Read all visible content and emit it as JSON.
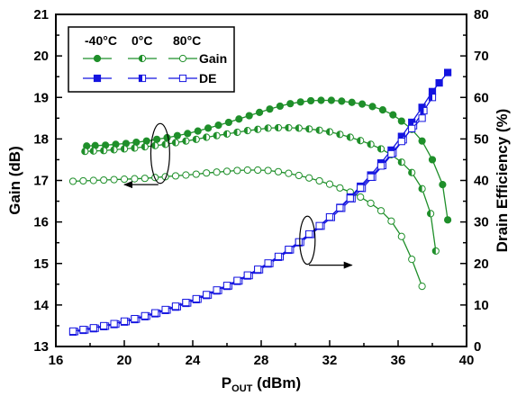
{
  "chart_data": {
    "type": "line",
    "xlabel_main": "P",
    "xlabel_sub": "OUT",
    "xlabel_unit": " (dBm)",
    "ylabel_left": "Gain (dB)",
    "ylabel_right": "Drain Efficiency (%)",
    "xlim": [
      16,
      40
    ],
    "ylim_left": [
      13,
      21
    ],
    "ylim_right": [
      0,
      80
    ],
    "x_ticks": [
      16,
      20,
      24,
      28,
      32,
      36,
      40
    ],
    "y_left_ticks": [
      13,
      14,
      15,
      16,
      17,
      18,
      19,
      20,
      21
    ],
    "y_right_ticks": [
      0,
      10,
      20,
      30,
      40,
      50,
      60,
      70,
      80
    ],
    "grid": false,
    "legend": {
      "placement": "top-left",
      "temperatures": [
        "-40°C",
        "0°C",
        "80°C"
      ],
      "metrics": [
        "Gain",
        "DE"
      ]
    },
    "colors": {
      "gain": "#1f8f2a",
      "de": "#1414e0"
    },
    "series": [
      {
        "name": "Gain -40°C",
        "metric": "Gain",
        "axis": "left",
        "marker": "filled-circle",
        "x": [
          17.8,
          18.3,
          18.9,
          19.5,
          20.1,
          20.7,
          21.3,
          21.9,
          22.5,
          23.1,
          23.7,
          24.3,
          24.9,
          25.5,
          26.1,
          26.7,
          27.3,
          27.9,
          28.5,
          29.1,
          29.7,
          30.3,
          30.9,
          31.5,
          32.1,
          32.7,
          33.3,
          33.9,
          34.5,
          35.1,
          35.7,
          36.2,
          36.8,
          37.4,
          38.0,
          38.6,
          38.9
        ],
        "y": [
          17.83,
          17.84,
          17.85,
          17.87,
          17.89,
          17.92,
          17.95,
          17.99,
          18.03,
          18.08,
          18.13,
          18.19,
          18.26,
          18.33,
          18.4,
          18.48,
          18.56,
          18.64,
          18.72,
          18.79,
          18.85,
          18.89,
          18.92,
          18.93,
          18.93,
          18.91,
          18.88,
          18.84,
          18.78,
          18.7,
          18.58,
          18.43,
          18.23,
          17.95,
          17.5,
          16.9,
          16.05
        ]
      },
      {
        "name": "Gain 0°C",
        "metric": "Gain",
        "axis": "left",
        "marker": "half-circle",
        "x": [
          17.7,
          18.2,
          18.8,
          19.4,
          20.0,
          20.6,
          21.2,
          21.8,
          22.4,
          23.0,
          23.6,
          24.2,
          24.8,
          25.4,
          26.0,
          26.6,
          27.2,
          27.8,
          28.4,
          29.0,
          29.6,
          30.2,
          30.8,
          31.4,
          32.0,
          32.6,
          33.2,
          33.8,
          34.4,
          35.0,
          35.6,
          36.2,
          36.8,
          37.4,
          37.9,
          38.2
        ],
        "y": [
          17.7,
          17.71,
          17.72,
          17.74,
          17.76,
          17.78,
          17.81,
          17.84,
          17.87,
          17.91,
          17.95,
          17.99,
          18.04,
          18.08,
          18.12,
          18.16,
          18.2,
          18.23,
          18.26,
          18.27,
          18.27,
          18.26,
          18.24,
          18.21,
          18.17,
          18.11,
          18.04,
          17.96,
          17.87,
          17.76,
          17.62,
          17.44,
          17.19,
          16.8,
          16.2,
          15.3
        ]
      },
      {
        "name": "Gain 80°C",
        "metric": "Gain",
        "axis": "left",
        "marker": "open-circle",
        "x": [
          17.0,
          17.6,
          18.2,
          18.8,
          19.4,
          20.0,
          20.6,
          21.2,
          21.8,
          22.4,
          23.0,
          23.6,
          24.2,
          24.8,
          25.4,
          26.0,
          26.6,
          27.2,
          27.8,
          28.4,
          29.0,
          29.6,
          30.2,
          30.8,
          31.4,
          32.0,
          32.6,
          33.2,
          33.8,
          34.4,
          35.0,
          35.6,
          36.2,
          36.8,
          37.4
        ],
        "y": [
          16.98,
          16.99,
          17.0,
          17.01,
          17.02,
          17.03,
          17.04,
          17.05,
          17.07,
          17.09,
          17.11,
          17.13,
          17.15,
          17.18,
          17.2,
          17.22,
          17.24,
          17.25,
          17.25,
          17.24,
          17.21,
          17.17,
          17.12,
          17.06,
          16.99,
          16.91,
          16.82,
          16.72,
          16.6,
          16.45,
          16.27,
          16.02,
          15.65,
          15.1,
          14.45
        ]
      },
      {
        "name": "DE -40°C",
        "metric": "DE",
        "axis": "right",
        "marker": "filled-square",
        "x": [
          17.0,
          17.6,
          18.2,
          18.8,
          19.4,
          20.0,
          20.6,
          21.2,
          21.8,
          22.4,
          23.0,
          23.6,
          24.2,
          24.8,
          25.4,
          26.0,
          26.6,
          27.2,
          27.8,
          28.4,
          29.0,
          29.6,
          30.2,
          30.8,
          31.4,
          32.0,
          32.6,
          33.2,
          33.8,
          34.4,
          35.0,
          35.6,
          36.2,
          36.8,
          37.4,
          38.0,
          38.4,
          38.9
        ],
        "y": [
          3.5,
          3.9,
          4.3,
          4.8,
          5.3,
          5.9,
          6.5,
          7.2,
          7.9,
          8.7,
          9.5,
          10.4,
          11.3,
          12.3,
          13.4,
          14.5,
          15.7,
          17.0,
          18.4,
          19.9,
          21.5,
          23.2,
          25.0,
          27.0,
          29.0,
          31.2,
          33.5,
          36.0,
          38.6,
          41.3,
          44.2,
          47.3,
          50.6,
          54.0,
          57.6,
          61.4,
          63.5,
          66.0
        ]
      },
      {
        "name": "DE 0°C",
        "metric": "DE",
        "axis": "right",
        "marker": "half-square",
        "x": [
          17.1,
          17.7,
          18.3,
          18.9,
          19.5,
          20.1,
          20.7,
          21.3,
          21.9,
          22.5,
          23.1,
          23.7,
          24.3,
          24.9,
          25.5,
          26.1,
          26.7,
          27.3,
          27.9,
          28.5,
          29.1,
          29.7,
          30.3,
          30.9,
          31.5,
          32.1,
          32.7,
          33.3,
          33.9,
          34.5,
          35.1,
          35.7,
          36.3,
          36.9,
          37.5,
          38.0
        ],
        "y": [
          3.6,
          4.0,
          4.4,
          4.9,
          5.4,
          6.0,
          6.6,
          7.3,
          8.0,
          8.8,
          9.6,
          10.5,
          11.4,
          12.4,
          13.5,
          14.6,
          15.8,
          17.1,
          18.5,
          20.0,
          21.6,
          23.3,
          25.1,
          27.0,
          29.0,
          31.1,
          33.3,
          35.6,
          38.1,
          40.8,
          43.6,
          46.6,
          49.8,
          53.2,
          56.8,
          60.0
        ]
      },
      {
        "name": "DE 80°C",
        "metric": "DE",
        "axis": "right",
        "marker": "open-square",
        "x": [
          17.0,
          17.6,
          18.2,
          18.8,
          19.4,
          20.0,
          20.6,
          21.2,
          21.8,
          22.4,
          23.0,
          23.6,
          24.2,
          24.8,
          25.4,
          26.0,
          26.6,
          27.2,
          27.8,
          28.4,
          29.0,
          29.6,
          30.2,
          30.8,
          31.4,
          32.0,
          32.6,
          33.2,
          33.8,
          34.4,
          35.0,
          35.6,
          36.2,
          36.8,
          37.4
        ],
        "y": [
          3.7,
          4.1,
          4.5,
          5.0,
          5.5,
          6.1,
          6.7,
          7.4,
          8.1,
          8.9,
          9.7,
          10.6,
          11.5,
          12.5,
          13.6,
          14.7,
          15.9,
          17.2,
          18.6,
          20.1,
          21.7,
          23.4,
          25.2,
          27.1,
          29.1,
          31.2,
          33.4,
          35.7,
          38.2,
          40.8,
          43.5,
          46.4,
          49.4,
          52.5,
          55.0
        ]
      }
    ],
    "annotations": [
      {
        "type": "ellipse",
        "axis": "left",
        "cx": 22.1,
        "cy": 17.65,
        "rx": 0.55,
        "ry": 0.72,
        "arrow_to_x": 20.0,
        "arrow_y": 16.9,
        "arrow_direction": "left"
      },
      {
        "type": "ellipse",
        "axis": "right",
        "cx": 30.7,
        "cy": 25.6,
        "rx": 0.45,
        "ry": 5.8,
        "arrow_to_x": 33.3,
        "arrow_y": 19.6,
        "arrow_direction": "right"
      }
    ]
  }
}
